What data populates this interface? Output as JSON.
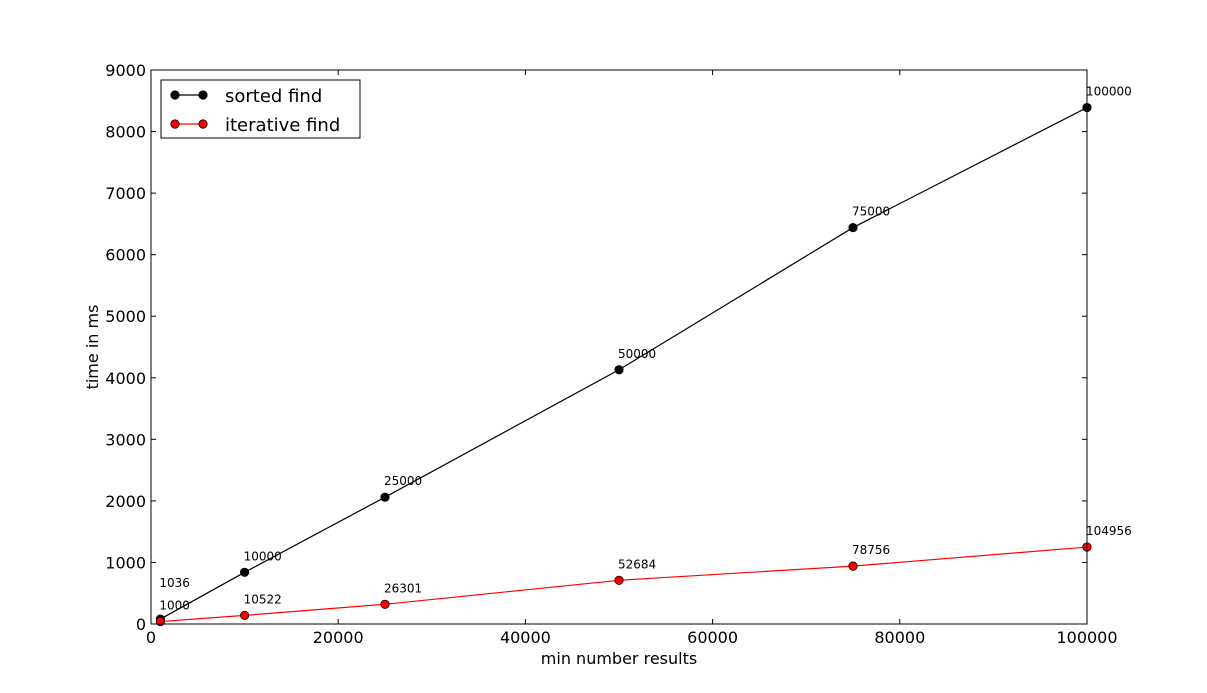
{
  "chart_data": {
    "type": "line",
    "title": "",
    "xlabel": "min number results",
    "ylabel": "time in ms",
    "xlim": [
      0,
      100000
    ],
    "ylim": [
      0,
      9000
    ],
    "xticks": [
      0,
      20000,
      40000,
      60000,
      80000,
      100000
    ],
    "yticks": [
      0,
      1000,
      2000,
      3000,
      4000,
      5000,
      6000,
      7000,
      8000,
      9000
    ],
    "grid": false,
    "legend_position": "top-left",
    "series": [
      {
        "name": "sorted find",
        "color": "#000000",
        "marker_color": "#000000",
        "points": [
          {
            "x": 1000,
            "y": 80,
            "label": "1036"
          },
          {
            "x": 10000,
            "y": 840,
            "label": "10000"
          },
          {
            "x": 25000,
            "y": 2060,
            "label": "25000"
          },
          {
            "x": 50000,
            "y": 4130,
            "label": "50000"
          },
          {
            "x": 75000,
            "y": 6440,
            "label": "75000"
          },
          {
            "x": 100000,
            "y": 8390,
            "label": "100000"
          }
        ]
      },
      {
        "name": "iterative find",
        "color": "#ff0000",
        "marker_color": "#ff0000",
        "points": [
          {
            "x": 1000,
            "y": 40,
            "label": "1000"
          },
          {
            "x": 10000,
            "y": 140,
            "label": "10522"
          },
          {
            "x": 25000,
            "y": 320,
            "label": "26301"
          },
          {
            "x": 50000,
            "y": 710,
            "label": "52684"
          },
          {
            "x": 75000,
            "y": 940,
            "label": "78756"
          },
          {
            "x": 100000,
            "y": 1250,
            "label": "104956"
          }
        ]
      }
    ]
  }
}
